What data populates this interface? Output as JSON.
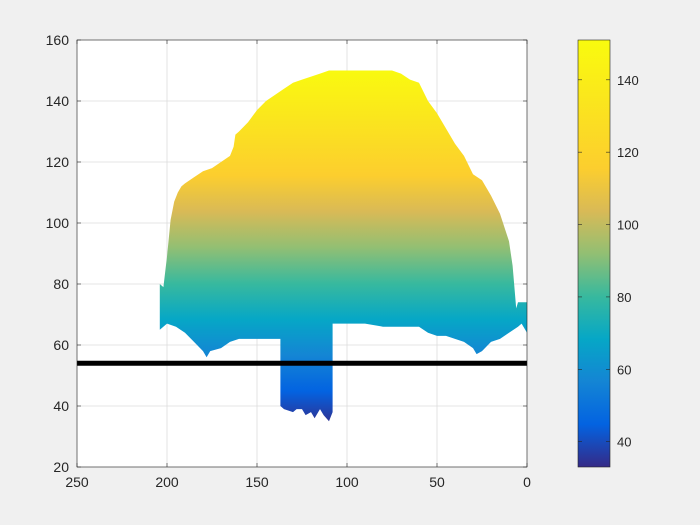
{
  "chart_data": {
    "type": "heatmap",
    "title": "",
    "xlabel": "",
    "ylabel": "",
    "x_direction": "reversed",
    "xlim": [
      0,
      250
    ],
    "ylim": [
      20,
      160
    ],
    "xticks": [
      250,
      200,
      150,
      100,
      50,
      0
    ],
    "yticks": [
      20,
      40,
      60,
      80,
      100,
      120,
      140,
      160
    ],
    "grid": true,
    "colormap": "parula",
    "clim": [
      33,
      151
    ],
    "colorbar_ticks": [
      40,
      60,
      80,
      100,
      120,
      140
    ],
    "colorbar_placement": "right",
    "color_encodes": "y value",
    "surface_top_profile": {
      "x": [
        204,
        202,
        200,
        198,
        196,
        194,
        192,
        190,
        185,
        180,
        175,
        170,
        165,
        163,
        162,
        160,
        155,
        150,
        145,
        140,
        135,
        130,
        125,
        120,
        115,
        110,
        105,
        100,
        95,
        90,
        85,
        80,
        75,
        70,
        65,
        60,
        55,
        50,
        45,
        40,
        35,
        30,
        25,
        20,
        15,
        10,
        8,
        6,
        5,
        3,
        0
      ],
      "y": [
        80,
        79,
        89,
        101,
        107,
        110,
        112,
        113,
        115,
        117,
        118,
        120,
        122,
        125,
        129,
        130,
        133,
        137,
        140,
        142,
        144,
        146,
        147,
        148,
        149,
        150,
        150,
        150,
        150,
        150,
        150,
        150,
        150,
        149,
        147,
        146,
        140,
        136,
        131,
        126,
        122,
        116,
        114,
        109,
        103,
        94,
        86,
        72,
        74,
        74,
        74
      ]
    },
    "surface_bottom_profile": {
      "x": [
        204,
        200,
        195,
        190,
        185,
        180,
        178,
        176,
        170,
        165,
        160,
        150,
        140,
        137,
        137,
        135,
        130,
        128,
        125,
        123,
        120,
        118,
        115,
        113,
        110,
        108,
        108,
        105,
        100,
        90,
        80,
        70,
        60,
        55,
        50,
        45,
        40,
        35,
        30,
        28,
        25,
        20,
        15,
        10,
        5,
        3,
        0
      ],
      "y": [
        65,
        67,
        66,
        64,
        61,
        58,
        56,
        58,
        59,
        61,
        62,
        62,
        62,
        62,
        40,
        39,
        38,
        39,
        39,
        37,
        38,
        36,
        39,
        37,
        35,
        38,
        67,
        67,
        67,
        67,
        66,
        66,
        66,
        64,
        63,
        63,
        62,
        61,
        59,
        57,
        58,
        61,
        62,
        64,
        66,
        67,
        64
      ]
    },
    "annotations": [
      {
        "type": "horizontal-line",
        "y": 54,
        "x_from": 250,
        "x_to": 0,
        "color": "#000000"
      }
    ]
  }
}
